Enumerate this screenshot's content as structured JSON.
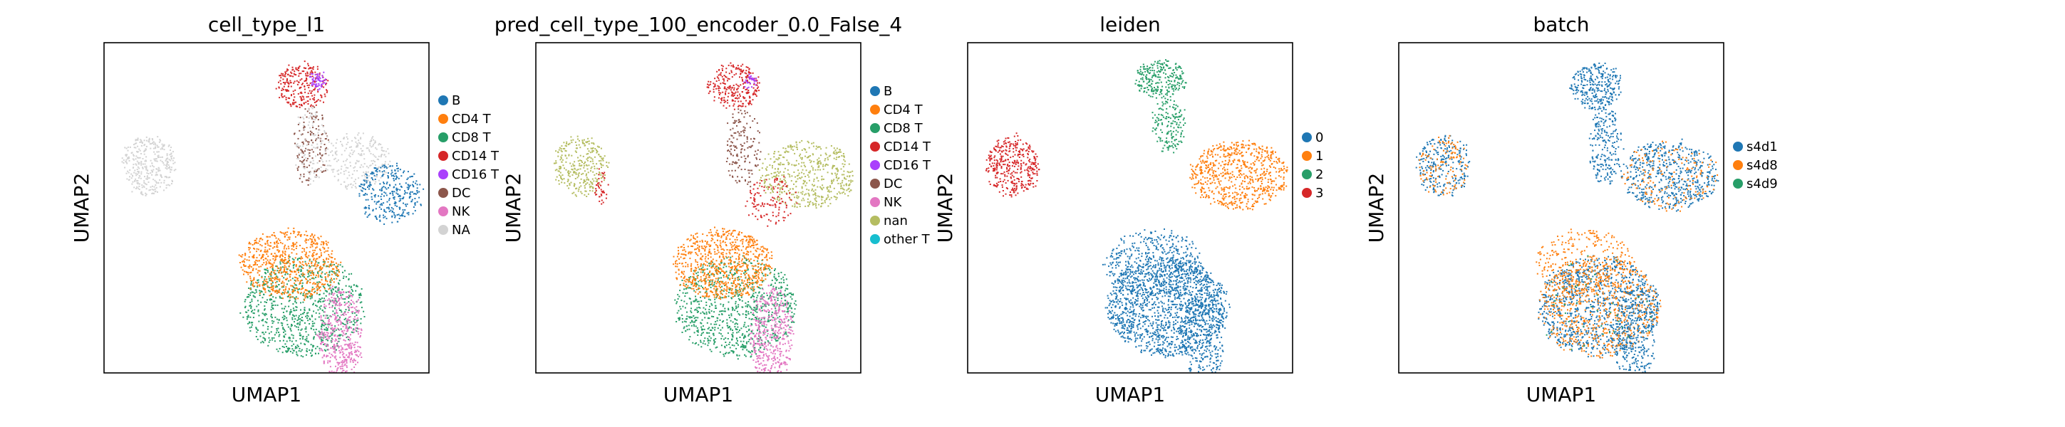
{
  "chart_data": [
    {
      "type": "scatter",
      "title": "cell_type_l1",
      "xlabel": "UMAP1",
      "ylabel": "UMAP2",
      "legend_position": "right",
      "legend": [
        {
          "label": "B",
          "color": "#1f77b4"
        },
        {
          "label": "CD4 T",
          "color": "#ff7f0e"
        },
        {
          "label": "CD8 T",
          "color": "#279e68"
        },
        {
          "label": "CD14 T",
          "color": "#d62728"
        },
        {
          "label": "CD16 T",
          "color": "#aa40fc"
        },
        {
          "label": "DC",
          "color": "#8c564b"
        },
        {
          "label": "NK",
          "color": "#e377c2"
        },
        {
          "label": "NA",
          "color": "#d3d3d3"
        }
      ]
    },
    {
      "type": "scatter",
      "title": "pred_cell_type_100_encoder_0.0_False_4",
      "xlabel": "UMAP1",
      "ylabel": "UMAP2",
      "legend_position": "right",
      "legend": [
        {
          "label": "B",
          "color": "#1f77b4"
        },
        {
          "label": "CD4 T",
          "color": "#ff7f0e"
        },
        {
          "label": "CD8 T",
          "color": "#279e68"
        },
        {
          "label": "CD14 T",
          "color": "#d62728"
        },
        {
          "label": "CD16 T",
          "color": "#aa40fc"
        },
        {
          "label": "DC",
          "color": "#8c564b"
        },
        {
          "label": "NK",
          "color": "#e377c2"
        },
        {
          "label": "nan",
          "color": "#b5bd61"
        },
        {
          "label": "other T",
          "color": "#17becf"
        }
      ]
    },
    {
      "type": "scatter",
      "title": "leiden",
      "xlabel": "UMAP1",
      "ylabel": "UMAP2",
      "legend_position": "right",
      "legend": [
        {
          "label": "0",
          "color": "#1f77b4"
        },
        {
          "label": "1",
          "color": "#ff7f0e"
        },
        {
          "label": "2",
          "color": "#279e68"
        },
        {
          "label": "3",
          "color": "#d62728"
        }
      ]
    },
    {
      "type": "scatter",
      "title": "batch",
      "xlabel": "UMAP1",
      "ylabel": "UMAP2",
      "legend_position": "right",
      "legend": [
        {
          "label": "s4d1",
          "color": "#1f77b4"
        },
        {
          "label": "s4d8",
          "color": "#ff7f0e"
        },
        {
          "label": "s4d9",
          "color": "#279e68"
        }
      ]
    }
  ]
}
